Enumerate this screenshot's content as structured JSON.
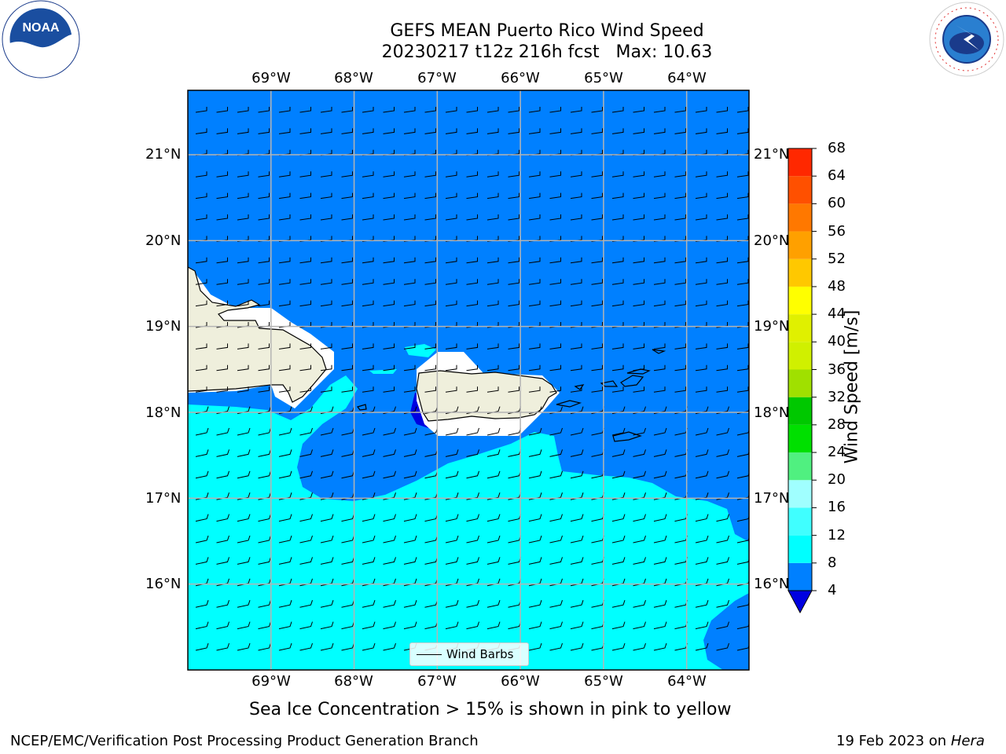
{
  "title": {
    "line1": "GEFS MEAN Puerto Rico Wind Speed",
    "line2": "20230217 t12z 216h fcst   Max: 10.63"
  },
  "map": {
    "lon_labels": [
      "69°W",
      "68°W",
      "67°W",
      "66°W",
      "65°W",
      "64°W"
    ],
    "lat_labels": [
      "21°N",
      "20°N",
      "19°N",
      "18°N",
      "17°N",
      "16°N"
    ],
    "lon_range": [
      -70.0,
      -63.25
    ],
    "lat_range": [
      15.0,
      21.75
    ],
    "colors": {
      "wind_4_8": "#0080ff",
      "wind_8_12": "#00ffff",
      "wind_lt_4": "#0000e0",
      "land": "#efefdc",
      "gridline": "#b4b4b4"
    }
  },
  "legend": {
    "label": "Wind Barbs"
  },
  "colorbar": {
    "label": "Wind Speed [m/s]",
    "ticks": [
      "68",
      "64",
      "60",
      "56",
      "52",
      "48",
      "44",
      "40",
      "36",
      "32",
      "28",
      "24",
      "20",
      "16",
      "12",
      "8",
      "4"
    ],
    "levels": [
      4,
      8,
      12,
      16,
      20,
      24,
      28,
      32,
      36,
      40,
      44,
      48,
      52,
      56,
      60,
      64,
      68
    ],
    "colors_bottom_to_top": [
      "#0080ff",
      "#00ffff",
      "#40ffff",
      "#a0ffff",
      "#50f080",
      "#00e000",
      "#00c800",
      "#a0e000",
      "#d0f000",
      "#e0f000",
      "#ffff00",
      "#ffc800",
      "#ffa000",
      "#ff7800",
      "#ff5000",
      "#ff2800"
    ],
    "extend_color": "#0000e0"
  },
  "note": "Sea Ice Concentration > 15% is shown in pink to yellow",
  "footer": {
    "left": "NCEP/EMC/Verification Post Processing Product Generation Branch",
    "date": "19 Feb 2023 on ",
    "host": "Hera"
  },
  "logos": {
    "noaa": {
      "text": "NOAA",
      "icon": "noaa-logo-icon"
    },
    "nws": {
      "text": "NATIONAL WEATHER SERVICE",
      "icon": "nws-logo-icon"
    }
  }
}
